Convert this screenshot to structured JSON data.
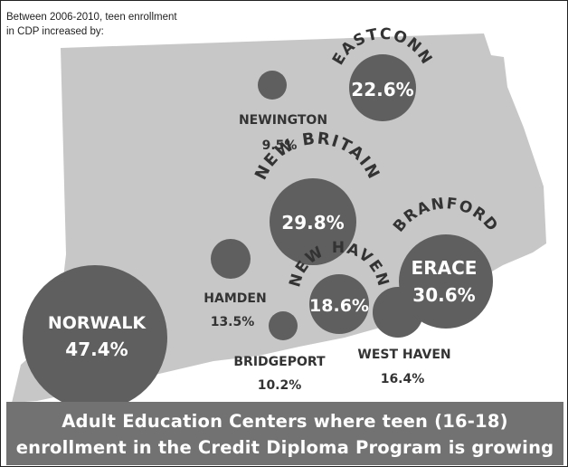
{
  "intro": {
    "line1": "Between 2006-2010, teen enrollment",
    "line2": "in CDP increased by:"
  },
  "colors": {
    "map_fill": "#c7c7c7",
    "bubble_fill": "#5f5f5f",
    "banner_fill": "#727272",
    "dark_text": "#333333",
    "light_text": "#ffffff"
  },
  "centers": [
    {
      "id": "eastconn",
      "name": "EASTCONN",
      "value": "22.6%"
    },
    {
      "id": "newington",
      "name": "NEWINGTON",
      "value": "9.5%"
    },
    {
      "id": "new-britain",
      "name": "NEW BRITAIN",
      "value": "29.8%"
    },
    {
      "id": "branford-erace",
      "name": "BRANFORD",
      "subname": "ERACE",
      "value": "30.6%"
    },
    {
      "id": "new-haven",
      "name": "NEW HAVEN",
      "value": "18.6%"
    },
    {
      "id": "hamden",
      "name": "HAMDEN",
      "value": "13.5%"
    },
    {
      "id": "norwalk",
      "name": "NORWALK",
      "value": "47.4%"
    },
    {
      "id": "bridgeport",
      "name": "BRIDGEPORT",
      "value": "10.2%"
    },
    {
      "id": "west-haven",
      "name": "WEST HAVEN",
      "value": "16.4%"
    }
  ],
  "banner": {
    "line1": "Adult Education Centers where teen (16-18)",
    "line2": "enrollment in the Credit Diploma Program is growing"
  }
}
